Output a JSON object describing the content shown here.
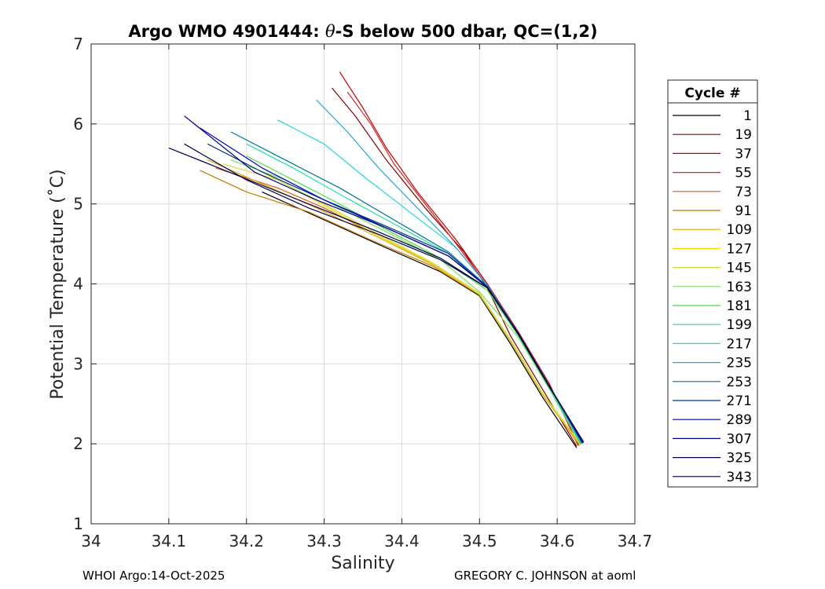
{
  "chart_data": {
    "type": "line",
    "title_prefix": "Argo WMO 4901444: ",
    "title_theta": "θ",
    "title_suffix": "-S below 500 dbar,  QC=(1,2)",
    "xlabel": "Salinity",
    "ylabel": "Potential Temperature (˚C)",
    "xlim": [
      34.0,
      34.7
    ],
    "ylim": [
      1,
      7
    ],
    "xticks": [
      34.0,
      34.1,
      34.2,
      34.3,
      34.4,
      34.5,
      34.6,
      34.7
    ],
    "xtick_labels": [
      "34",
      "34.1",
      "34.2",
      "34.3",
      "34.4",
      "34.5",
      "34.6",
      "34.7"
    ],
    "yticks": [
      1,
      2,
      3,
      4,
      5,
      6,
      7
    ],
    "ytick_labels": [
      "1",
      "2",
      "3",
      "4",
      "5",
      "6",
      "7"
    ],
    "grid": true,
    "legend": {
      "title": "Cycle #",
      "placement": "outside-right",
      "entries": [
        {
          "label": "1",
          "color": "#000000"
        },
        {
          "label": "19",
          "color": "#8a0000"
        },
        {
          "label": "37",
          "color": "#c80000"
        },
        {
          "label": "55",
          "color": "#e62020"
        },
        {
          "label": "73",
          "color": "#e8541c"
        },
        {
          "label": "91",
          "color": "#c97800"
        },
        {
          "label": "109",
          "color": "#e0a800"
        },
        {
          "label": "127",
          "color": "#f0e000"
        },
        {
          "label": "145",
          "color": "#c8e040"
        },
        {
          "label": "163",
          "color": "#80e060"
        },
        {
          "label": "181",
          "color": "#40e040"
        },
        {
          "label": "199",
          "color": "#20e0a0"
        },
        {
          "label": "217",
          "color": "#20d8d8"
        },
        {
          "label": "235",
          "color": "#20a8e0"
        },
        {
          "label": "253",
          "color": "#0070a0"
        },
        {
          "label": "271",
          "color": "#003880"
        },
        {
          "label": "289",
          "color": "#0000c0"
        },
        {
          "label": "307",
          "color": "#000090"
        },
        {
          "label": "325",
          "color": "#000050"
        },
        {
          "label": "343",
          "color": "#000040"
        }
      ]
    },
    "series": [
      {
        "name": "1",
        "color": "#000000",
        "salinity": [
          34.625,
          34.58,
          34.54,
          34.5,
          34.45,
          34.38,
          34.3,
          34.22
        ],
        "theta": [
          1.95,
          2.6,
          3.25,
          3.85,
          4.15,
          4.45,
          4.8,
          5.15
        ]
      },
      {
        "name": "19",
        "color": "#8a0000",
        "salinity": [
          34.625,
          34.58,
          34.54,
          34.51,
          34.48,
          34.43,
          34.38,
          34.34,
          34.31
        ],
        "theta": [
          1.97,
          2.7,
          3.35,
          3.95,
          4.4,
          4.95,
          5.55,
          6.1,
          6.45
        ]
      },
      {
        "name": "37",
        "color": "#c80000",
        "salinity": [
          34.627,
          34.59,
          34.55,
          34.51,
          34.47,
          34.42,
          34.38,
          34.35,
          34.32
        ],
        "theta": [
          1.98,
          2.75,
          3.4,
          4.0,
          4.55,
          5.15,
          5.7,
          6.2,
          6.65
        ]
      },
      {
        "name": "55",
        "color": "#e62020",
        "salinity": [
          34.628,
          34.59,
          34.55,
          34.51,
          34.47,
          34.43,
          34.39,
          34.36,
          34.33
        ],
        "theta": [
          1.98,
          2.72,
          3.38,
          3.98,
          4.5,
          5.0,
          5.5,
          6.0,
          6.4
        ]
      },
      {
        "name": "73",
        "color": "#e8541c",
        "salinity": [
          34.628,
          34.58,
          34.54,
          34.5,
          34.44,
          34.37,
          34.3,
          34.24,
          34.16
        ],
        "theta": [
          1.99,
          2.65,
          3.3,
          3.88,
          4.25,
          4.6,
          4.95,
          5.2,
          5.45
        ]
      },
      {
        "name": "91",
        "color": "#c97800",
        "salinity": [
          34.629,
          34.58,
          34.54,
          34.5,
          34.44,
          34.36,
          34.28,
          34.2,
          34.14
        ],
        "theta": [
          1.99,
          2.63,
          3.28,
          3.86,
          4.22,
          4.55,
          4.9,
          5.15,
          5.42
        ]
      },
      {
        "name": "109",
        "color": "#e0a800",
        "salinity": [
          34.629,
          34.58,
          34.54,
          34.5,
          34.44,
          34.37,
          34.29,
          34.22,
          34.15
        ],
        "theta": [
          1.99,
          2.64,
          3.29,
          3.87,
          4.24,
          4.58,
          4.95,
          5.25,
          5.55
        ]
      },
      {
        "name": "127",
        "color": "#f0e000",
        "salinity": [
          34.63,
          34.58,
          34.54,
          34.5,
          34.44,
          34.37,
          34.3,
          34.24,
          34.18
        ],
        "theta": [
          1.99,
          2.64,
          3.29,
          3.87,
          4.25,
          4.6,
          4.98,
          5.3,
          5.6
        ]
      },
      {
        "name": "145",
        "color": "#c8e040",
        "salinity": [
          34.63,
          34.58,
          34.54,
          34.5,
          34.44,
          34.37,
          34.3,
          34.24,
          34.17
        ],
        "theta": [
          2.0,
          2.65,
          3.3,
          3.88,
          4.26,
          4.62,
          5.0,
          5.3,
          5.5
        ]
      },
      {
        "name": "163",
        "color": "#80e060",
        "salinity": [
          34.63,
          34.59,
          34.55,
          34.5,
          34.45,
          34.38,
          34.31,
          34.25,
          34.18
        ],
        "theta": [
          2.0,
          2.68,
          3.33,
          3.9,
          4.3,
          4.65,
          5.0,
          5.3,
          5.55
        ]
      },
      {
        "name": "181",
        "color": "#40e040",
        "salinity": [
          34.63,
          34.59,
          34.55,
          34.51,
          34.45,
          34.38,
          34.31,
          34.25,
          34.2
        ],
        "theta": [
          2.0,
          2.7,
          3.35,
          3.92,
          4.32,
          4.68,
          5.05,
          5.35,
          5.6
        ]
      },
      {
        "name": "199",
        "color": "#20e0a0",
        "salinity": [
          34.631,
          34.59,
          34.55,
          34.51,
          34.46,
          34.39,
          34.32,
          34.26,
          34.2
        ],
        "theta": [
          2.0,
          2.7,
          3.36,
          3.95,
          4.38,
          4.75,
          5.12,
          5.45,
          5.75
        ]
      },
      {
        "name": "217",
        "color": "#20d8d8",
        "salinity": [
          34.631,
          34.59,
          34.55,
          34.51,
          34.47,
          34.41,
          34.35,
          34.3,
          34.24
        ],
        "theta": [
          2.0,
          2.72,
          3.38,
          3.98,
          4.45,
          4.9,
          5.35,
          5.75,
          6.05
        ]
      },
      {
        "name": "235",
        "color": "#20a8e0",
        "salinity": [
          34.632,
          34.59,
          34.55,
          34.51,
          34.47,
          34.42,
          34.37,
          34.33,
          34.29
        ],
        "theta": [
          2.0,
          2.72,
          3.38,
          3.98,
          4.45,
          4.95,
          5.45,
          5.9,
          6.3
        ]
      },
      {
        "name": "253",
        "color": "#0070a0",
        "salinity": [
          34.632,
          34.59,
          34.55,
          34.51,
          34.46,
          34.39,
          34.32,
          34.25,
          34.18
        ],
        "theta": [
          2.01,
          2.72,
          3.38,
          3.97,
          4.4,
          4.8,
          5.2,
          5.55,
          5.9
        ]
      },
      {
        "name": "271",
        "color": "#003880",
        "salinity": [
          34.633,
          34.59,
          34.55,
          34.51,
          34.46,
          34.38,
          34.3,
          34.22,
          34.15
        ],
        "theta": [
          2.01,
          2.72,
          3.38,
          3.96,
          4.38,
          4.72,
          5.05,
          5.4,
          5.75
        ]
      },
      {
        "name": "289",
        "color": "#0000c0",
        "salinity": [
          34.633,
          34.59,
          34.55,
          34.51,
          34.46,
          34.38,
          34.3,
          34.22,
          34.14
        ],
        "theta": [
          2.01,
          2.72,
          3.38,
          3.96,
          4.35,
          4.7,
          5.05,
          5.45,
          5.95
        ]
      },
      {
        "name": "307",
        "color": "#000090",
        "salinity": [
          34.634,
          34.59,
          34.55,
          34.51,
          34.46,
          34.38,
          34.29,
          34.21,
          34.12
        ],
        "theta": [
          2.02,
          2.72,
          3.38,
          3.96,
          4.35,
          4.7,
          5.05,
          5.4,
          6.1
        ]
      },
      {
        "name": "325",
        "color": "#000050",
        "salinity": [
          34.634,
          34.59,
          34.55,
          34.51,
          34.45,
          34.37,
          34.28,
          34.19,
          34.1
        ],
        "theta": [
          2.02,
          2.71,
          3.37,
          3.95,
          4.32,
          4.65,
          5.0,
          5.35,
          5.7
        ]
      },
      {
        "name": "343",
        "color": "#000040",
        "salinity": [
          34.634,
          34.59,
          34.55,
          34.51,
          34.45,
          34.37,
          34.28,
          34.2,
          34.12
        ],
        "theta": [
          2.02,
          2.71,
          3.37,
          3.95,
          4.3,
          4.62,
          4.95,
          5.3,
          5.75
        ]
      }
    ]
  },
  "footer": {
    "left": "WHOI Argo:14-Oct-2025",
    "right": "GREGORY C. JOHNSON at aoml"
  }
}
